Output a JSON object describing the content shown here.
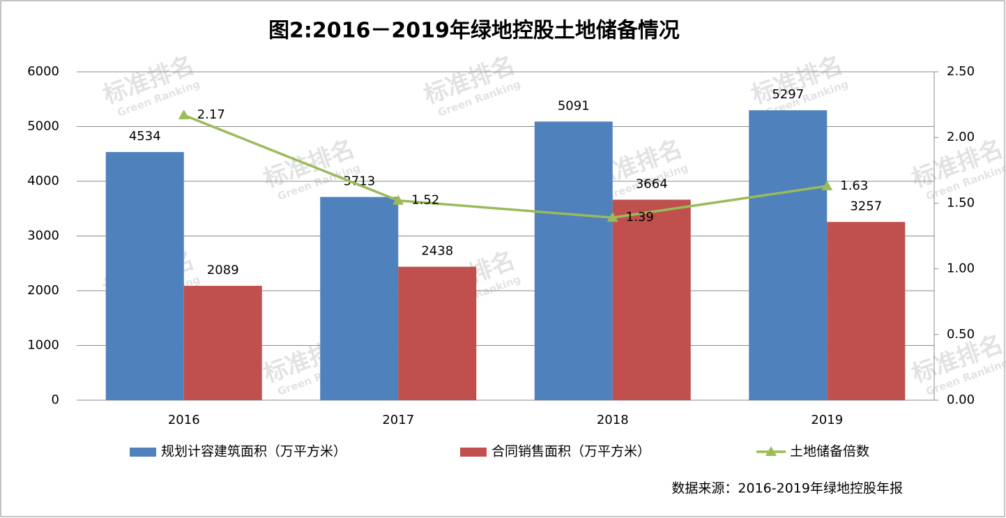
{
  "chart_data": {
    "type": "bar-line",
    "title": "图2:2016－2019年绿地控股土地储备情况",
    "categories": [
      "2016",
      "2017",
      "2018",
      "2019"
    ],
    "series": [
      {
        "name": "规划计容建筑面积（万平方米）",
        "color": "#4f81bd",
        "type": "bar",
        "values": [
          4534,
          3713,
          5091,
          5297
        ]
      },
      {
        "name": "合同销售面积（万平方米）",
        "color": "#c0504d",
        "type": "bar",
        "values": [
          2089,
          2438,
          3664,
          3257
        ]
      },
      {
        "name": "土地储备倍数",
        "color": "#9bbb59",
        "type": "line",
        "axis": "y2",
        "values": [
          2.17,
          1.52,
          1.39,
          1.63
        ]
      }
    ],
    "ylim": [
      0,
      6000
    ],
    "yticks": [
      0,
      1000,
      2000,
      3000,
      4000,
      5000,
      6000
    ],
    "y2lim": [
      0,
      2.5
    ],
    "y2ticks": [
      {
        "value": 0,
        "label": "0.00"
      },
      {
        "value": 0.5,
        "label": "0.50"
      },
      {
        "value": 1,
        "label": "1.00"
      },
      {
        "value": 1.5,
        "label": "1.50"
      },
      {
        "value": 2,
        "label": "2.00"
      },
      {
        "value": 2.5,
        "label": "2.50"
      }
    ],
    "grid": true,
    "legend": "bottom",
    "source": "数据来源：2016-2019年绿地控股年报",
    "watermark": [
      "标准排名",
      "Green Ranking"
    ]
  }
}
